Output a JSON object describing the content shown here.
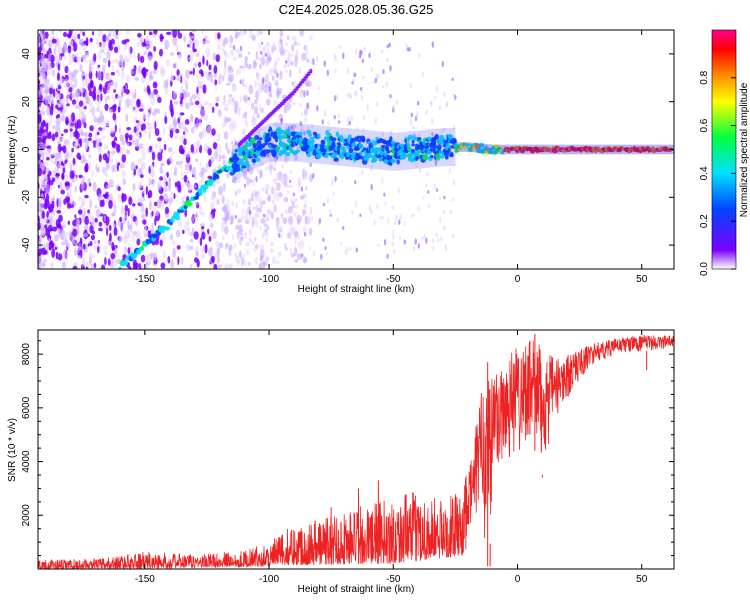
{
  "figure": {
    "title": "C2E4.2025.028.05.36.G25"
  },
  "chart_data": [
    {
      "type": "heatmap",
      "xlabel": "Height of straight line (km)",
      "ylabel": "Frequency (Hz)",
      "xlim": [
        -193,
        63
      ],
      "ylim": [
        -50,
        50
      ],
      "xticks": [
        -150,
        -100,
        -50,
        0,
        50
      ],
      "yticks": [
        -40,
        -20,
        0,
        20,
        40
      ],
      "colorbar": {
        "label": "Normalized spectral amplitude",
        "range": [
          0,
          1
        ],
        "ticks": [
          "0.0",
          "0.2",
          "0.4",
          "0.6",
          "0.8"
        ],
        "colors": [
          "#ffffff",
          "#7a00ff",
          "#0044ff",
          "#00e0ff",
          "#00ff40",
          "#ffff00",
          "#ff8000",
          "#ff0000",
          "#ff0090"
        ]
      },
      "main_trace": [
        {
          "x": -160,
          "y": -49
        },
        {
          "x": -150,
          "y": -40
        },
        {
          "x": -140,
          "y": -31
        },
        {
          "x": -130,
          "y": -20
        },
        {
          "x": -120,
          "y": -10
        },
        {
          "x": -110,
          "y": -2
        },
        {
          "x": -100,
          "y": 3
        },
        {
          "x": -90,
          "y": 3
        },
        {
          "x": -80,
          "y": 2
        },
        {
          "x": -70,
          "y": 1
        },
        {
          "x": -60,
          "y": 0
        },
        {
          "x": -50,
          "y": -1
        },
        {
          "x": -40,
          "y": 0
        },
        {
          "x": -30,
          "y": 1
        },
        {
          "x": -20,
          "y": 1
        },
        {
          "x": -10,
          "y": 0
        },
        {
          "x": 0,
          "y": 0
        },
        {
          "x": 20,
          "y": 0
        },
        {
          "x": 40,
          "y": 0
        },
        {
          "x": 62,
          "y": 0
        }
      ],
      "secondary_trace": [
        {
          "x": -112,
          "y": 2
        },
        {
          "x": -100,
          "y": 14
        },
        {
          "x": -90,
          "y": 24
        },
        {
          "x": -83,
          "y": 33
        }
      ]
    },
    {
      "type": "line",
      "xlabel": "Height of straight line (km)",
      "ylabel": "SNR (10 * v/v)",
      "xlim": [
        -193,
        63
      ],
      "ylim": [
        0,
        8900
      ],
      "xticks": [
        -150,
        -100,
        -50,
        0,
        50
      ],
      "yticks": [
        2000,
        4000,
        6000,
        8000
      ],
      "series": [
        {
          "color": "#ee2222",
          "envelope": [
            {
              "x": -193,
              "low": 0,
              "high": 350
            },
            {
              "x": -170,
              "low": 0,
              "high": 380
            },
            {
              "x": -150,
              "low": 0,
              "high": 650
            },
            {
              "x": -130,
              "low": 50,
              "high": 550
            },
            {
              "x": -110,
              "low": 80,
              "high": 700
            },
            {
              "x": -100,
              "low": 100,
              "high": 1000
            },
            {
              "x": -90,
              "low": 150,
              "high": 1700
            },
            {
              "x": -80,
              "low": 150,
              "high": 2000
            },
            {
              "x": -60,
              "low": 200,
              "high": 2400
            },
            {
              "x": -50,
              "low": 200,
              "high": 2700
            },
            {
              "x": -40,
              "low": 300,
              "high": 2900
            },
            {
              "x": -30,
              "low": 400,
              "high": 2600
            },
            {
              "x": -22,
              "low": 500,
              "high": 3000
            },
            {
              "x": -18,
              "low": 1200,
              "high": 4500
            },
            {
              "x": -15,
              "low": 2500,
              "high": 6500
            },
            {
              "x": -12,
              "low": 100,
              "high": 7800
            },
            {
              "x": -8,
              "low": 3500,
              "high": 7500
            },
            {
              "x": -4,
              "low": 3800,
              "high": 8200
            },
            {
              "x": 0,
              "low": 4200,
              "high": 8400
            },
            {
              "x": 5,
              "low": 5000,
              "high": 8600
            },
            {
              "x": 10,
              "low": 3500,
              "high": 8300
            },
            {
              "x": 15,
              "low": 5500,
              "high": 7800
            },
            {
              "x": 20,
              "low": 6300,
              "high": 8000
            },
            {
              "x": 25,
              "low": 7000,
              "high": 8200
            },
            {
              "x": 30,
              "low": 7600,
              "high": 8400
            },
            {
              "x": 40,
              "low": 8000,
              "high": 8600
            },
            {
              "x": 50,
              "low": 8100,
              "high": 8700
            },
            {
              "x": 63,
              "low": 8200,
              "high": 8700
            }
          ],
          "spikes": [
            {
              "x": -12,
              "y": 7700
            },
            {
              "x": -11,
              "y": 100
            },
            {
              "x": 7,
              "y": 8750
            },
            {
              "x": 5,
              "y": 8500
            },
            {
              "x": 10,
              "y": 3400
            },
            {
              "x": 52,
              "y": 7400
            },
            {
              "x": -75,
              "y": 2300
            },
            {
              "x": -64,
              "y": 3000
            },
            {
              "x": -56,
              "y": 3300
            }
          ]
        }
      ]
    }
  ]
}
